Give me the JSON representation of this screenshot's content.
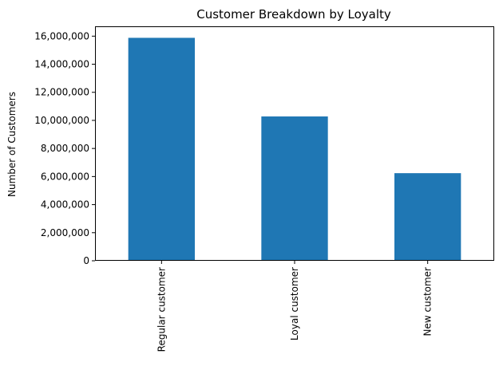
{
  "chart_data": {
    "type": "bar",
    "title": "Customer Breakdown by Loyalty",
    "xlabel": "",
    "ylabel": "Number of Customers",
    "categories": [
      "Regular customer",
      "Loyal customer",
      "New customer"
    ],
    "values": [
      15880000,
      10280000,
      6240000
    ],
    "ylim": [
      0,
      16700000
    ],
    "yticks": [
      0,
      2000000,
      4000000,
      6000000,
      8000000,
      10000000,
      12000000,
      14000000,
      16000000
    ],
    "ytick_labels": [
      "0",
      "2,000,000",
      "4,000,000",
      "6,000,000",
      "8,000,000",
      "10,000,000",
      "12,000,000",
      "14,000,000",
      "16,000,000"
    ],
    "bar_color": "#1f77b4",
    "grid": false,
    "legend": "none",
    "x_tick_rotation": "vertical"
  }
}
